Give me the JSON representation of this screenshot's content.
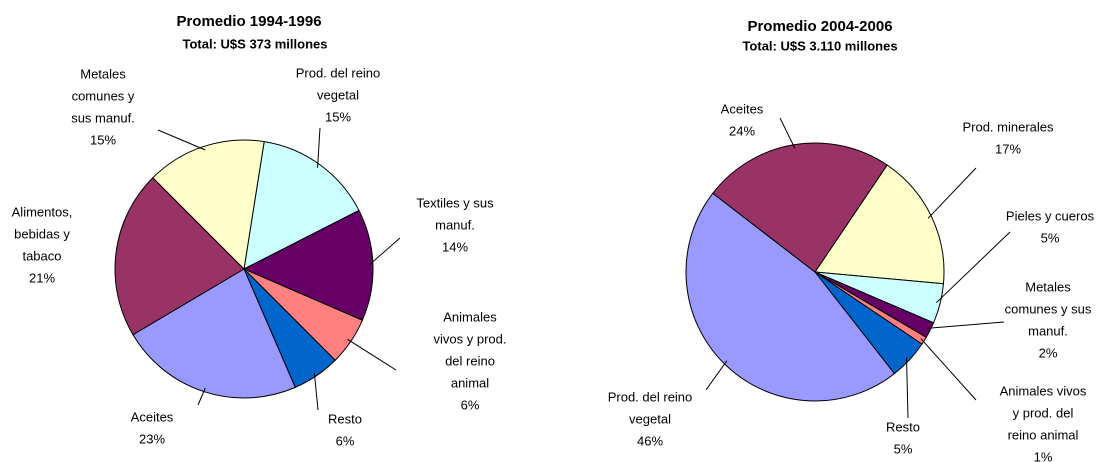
{
  "chart_data": [
    {
      "type": "pie",
      "title": "Promedio 1994-1996",
      "subtitle": "Total: U$S 373 millones",
      "labels": [
        [
          "Prod. del reino",
          "vegetal"
        ],
        [
          "Textiles y sus",
          "manuf."
        ],
        [
          "Animales",
          "vivos y prod.",
          "del reino",
          "animal"
        ],
        [
          "Resto"
        ],
        [
          "Aceites"
        ],
        [
          "Alimentos,",
          "bebidas y",
          "tabaco"
        ],
        [
          "Metales",
          "comunes y",
          "sus manuf."
        ]
      ],
      "values": [
        15,
        14,
        6,
        6,
        23,
        21,
        15
      ],
      "value_labels": [
        "15%",
        "14%",
        "6%",
        "6%",
        "23%",
        "21%",
        "15%"
      ],
      "colors": [
        "#ccffff",
        "#660066",
        "#ff8080",
        "#0066cc",
        "#9999ff",
        "#993366",
        "#ffffcc"
      ]
    },
    {
      "type": "pie",
      "title": "Promedio 2004-2006",
      "subtitle": "Total: U$S 3.110 millones",
      "labels": [
        [
          "Prod. minerales"
        ],
        [
          "Pieles y cueros"
        ],
        [
          "Metales",
          "comunes y sus",
          "manuf."
        ],
        [
          "Animales vivos",
          "y prod. del",
          "reino animal"
        ],
        [
          "Resto"
        ],
        [
          "Prod. del reino",
          "vegetal"
        ],
        [
          "Aceites"
        ]
      ],
      "values": [
        17,
        5,
        2,
        1,
        5,
        46,
        24
      ],
      "value_labels": [
        "17%",
        "5%",
        "2%",
        "1%",
        "5%",
        "46%",
        "24%"
      ],
      "colors": [
        "#ffffcc",
        "#ccffff",
        "#660066",
        "#ff8080",
        "#0066cc",
        "#9999ff",
        "#993366"
      ]
    }
  ]
}
